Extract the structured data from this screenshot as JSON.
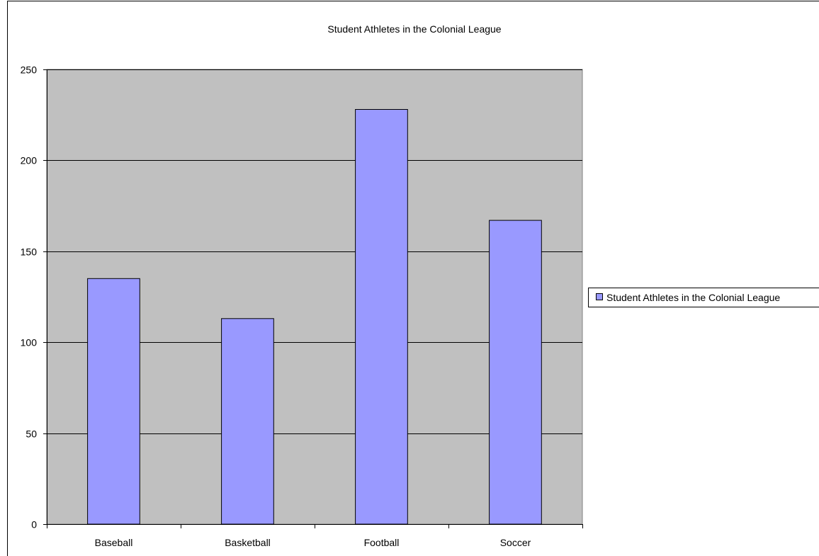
{
  "chart_data": {
    "type": "bar",
    "title": "Student Athletes in the Colonial League",
    "categories": [
      "Baseball",
      "Basketball",
      "Football",
      "Soccer"
    ],
    "series": [
      {
        "name": "Student Athletes in the Colonial League",
        "values": [
          135,
          113,
          228,
          167
        ],
        "color": "#9999ff"
      }
    ],
    "xlabel": "",
    "ylabel": "",
    "ylim": [
      0,
      250
    ],
    "yticks": [
      0,
      50,
      100,
      150,
      200,
      250
    ],
    "grid": true,
    "legend": "right",
    "colors": {
      "plot_background": "#c0c0c0",
      "gridline": "#000000",
      "bar_fill": "#9999ff",
      "bar_stroke": "#000000"
    }
  }
}
